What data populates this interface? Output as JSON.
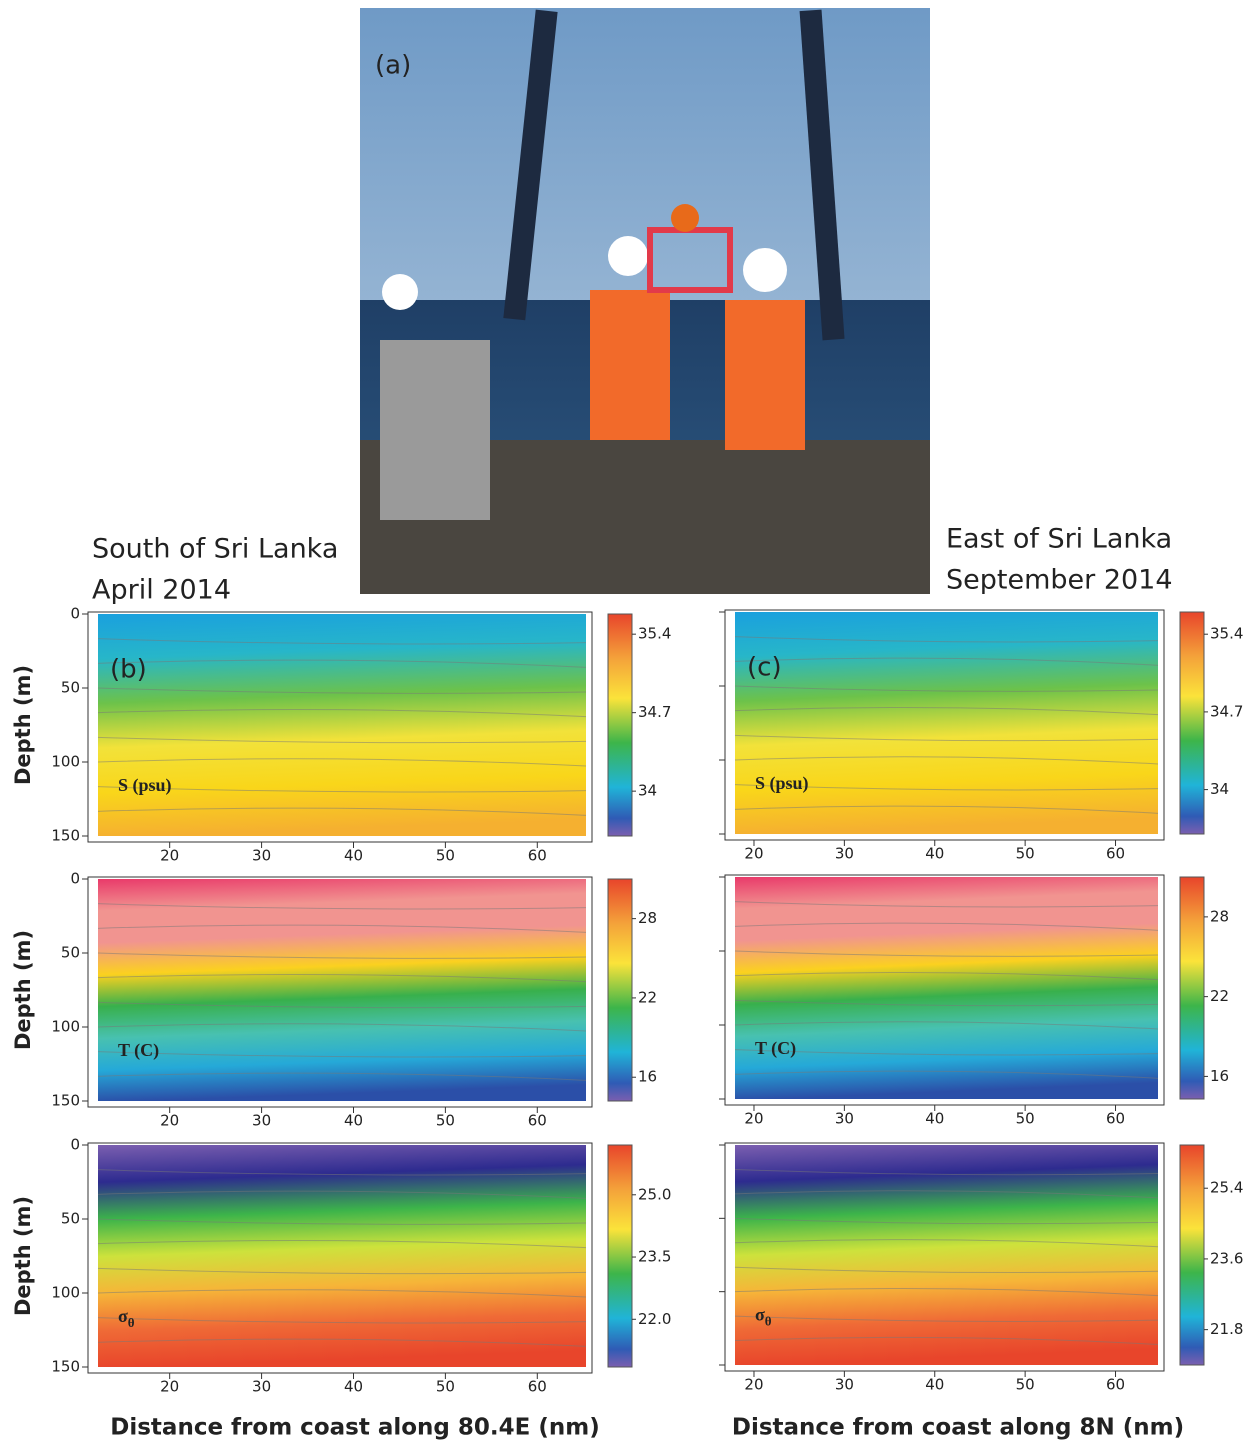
{
  "photo": {
    "label": "(a)"
  },
  "columns": [
    {
      "heading": [
        "South of Sri Lanka",
        "April 2014"
      ],
      "xlabel": "Distance from coast along 80.4E (nm)",
      "ylabel": "Depth (m)",
      "xlim": [
        12.2,
        65.3
      ],
      "xticks": [
        20,
        30,
        40,
        50,
        60
      ],
      "ylim": [
        0,
        150
      ],
      "yticks": [
        0,
        50,
        100,
        150
      ],
      "ytick_labels": true,
      "panels": [
        {
          "label": "(b)",
          "variable": "S (psu)",
          "clim": [
            33.6,
            35.58
          ],
          "cticks": [
            34,
            34.7,
            35.4
          ]
        },
        {
          "variable": "T (C)",
          "clim": [
            14.2,
            31
          ],
          "cticks": [
            16,
            22,
            28
          ]
        },
        {
          "variable": "σ",
          "subscript": "θ",
          "clim": [
            20.85,
            26.2
          ],
          "cticks": [
            {
              "value": 22,
              "label": "22.0"
            },
            23.5,
            {
              "value": 25,
              "label": "25.0"
            }
          ]
        }
      ]
    },
    {
      "heading": [
        "East of Sri Lanka",
        "September 2014"
      ],
      "xlabel": "Distance from coast along 8N (nm)",
      "xlim": [
        17.9,
        64.7
      ],
      "xticks": [
        20,
        30,
        40,
        50,
        60
      ],
      "ylim": [
        0,
        150
      ],
      "yticks": [
        0,
        50,
        100,
        150
      ],
      "ytick_labels": false,
      "panels": [
        {
          "label": "(c)",
          "variable": "S (psu)",
          "clim": [
            33.6,
            35.6
          ],
          "cticks": [
            34,
            34.7,
            35.4
          ]
        },
        {
          "variable": "T (C)",
          "clim": [
            14.3,
            31
          ],
          "cticks": [
            16,
            22,
            28
          ]
        },
        {
          "variable": "σ",
          "subscript": "θ",
          "clim": [
            20.9,
            26.5
          ],
          "cticks": [
            21.8,
            23.6,
            25.4
          ]
        }
      ]
    }
  ]
}
